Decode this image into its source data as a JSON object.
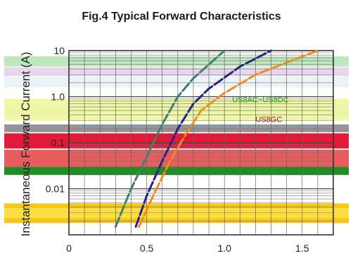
{
  "chart_data": {
    "type": "line",
    "title": "Fig.4  Typical Forward Characteristics",
    "ylabel": "Instantaneous Forward Current (A)",
    "xlabel": "",
    "y_scale": "log",
    "xlim": [
      0,
      1.7
    ],
    "ylim": [
      0.001,
      10
    ],
    "x_ticks": [
      0,
      0.5,
      1.0,
      1.5
    ],
    "x_tick_labels": [
      "0",
      "0.5",
      "1.0",
      "1.5"
    ],
    "y_ticks": [
      10,
      1,
      0.1,
      0.01
    ],
    "y_tick_labels": [
      "10",
      "1.0",
      "0.1",
      "0.01"
    ],
    "grid": true,
    "series": [
      {
        "color": "#3f7f6f",
        "x": [
          0.3,
          0.4,
          0.5,
          0.6,
          0.7,
          0.8,
          0.9,
          1.0
        ],
        "y": [
          0.0015,
          0.01,
          0.05,
          0.25,
          1.0,
          2.5,
          5.0,
          10
        ]
      },
      {
        "color": "#25257f",
        "x": [
          0.43,
          0.5,
          0.6,
          0.7,
          0.8,
          0.9,
          1.1,
          1.3
        ],
        "y": [
          0.0015,
          0.007,
          0.04,
          0.2,
          0.7,
          1.5,
          4.5,
          10
        ]
      },
      {
        "color": "#f08c1e",
        "x": [
          0.45,
          0.55,
          0.65,
          0.75,
          0.85,
          1.0,
          1.2,
          1.6
        ],
        "y": [
          0.0015,
          0.008,
          0.04,
          0.15,
          0.5,
          1.2,
          3.0,
          10
        ]
      }
    ],
    "annotations": [
      {
        "text": "US8AC~US8DC",
        "x": 1.05,
        "y": 0.75,
        "color": "#1e9a1e"
      },
      {
        "text": "US8GC",
        "x": 1.2,
        "y": 0.28,
        "color": "#8a1a2a"
      }
    ],
    "bands": [
      {
        "y_from": 4.5,
        "y_to": 7.5,
        "color": "#b6e6b6"
      },
      {
        "y_from": 2.8,
        "y_to": 4.3,
        "color": "#e3d2ea"
      },
      {
        "y_from": 1.6,
        "y_to": 2.7,
        "color": "#e9f2f8"
      },
      {
        "y_from": 0.3,
        "y_to": 0.9,
        "color": "#f0f59e"
      },
      {
        "y_from": 0.4,
        "y_to": 0.62,
        "color": "#ecf6a2"
      },
      {
        "y_from": 0.17,
        "y_to": 0.25,
        "color": "#8a8a8a"
      },
      {
        "y_from": 0.075,
        "y_to": 0.16,
        "color": "#e00022"
      },
      {
        "y_from": 0.03,
        "y_to": 0.07,
        "color": "#e44a4a"
      },
      {
        "y_from": 0.02,
        "y_to": 0.03,
        "color": "#0c7e10"
      },
      {
        "y_from": 0.0018,
        "y_to": 0.0048,
        "color": "#f5c000"
      },
      {
        "y_from": 0.0023,
        "y_to": 0.0038,
        "color": "#fce048"
      }
    ]
  }
}
